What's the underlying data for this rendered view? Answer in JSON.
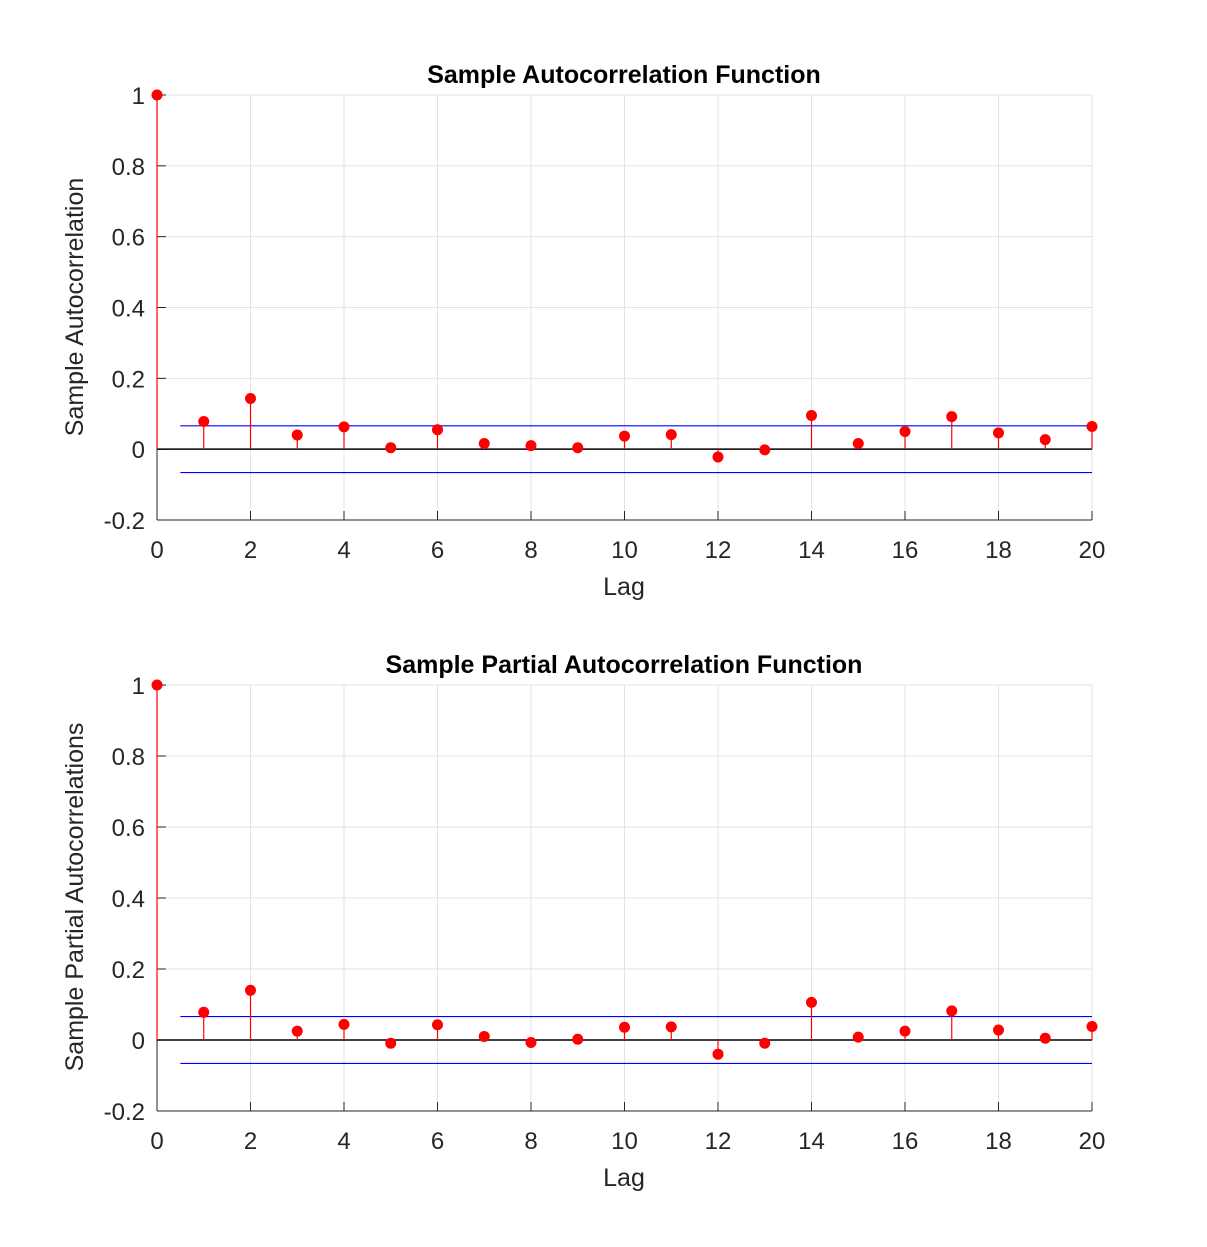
{
  "colors": {
    "stem": "#ff0000",
    "marker": "#ff0000",
    "bound": "#0000ff",
    "zero_line": "#000000",
    "grid": "#e3e3e3",
    "axis": "#262626"
  },
  "chart_data": [
    {
      "type": "stem",
      "title": "Sample Autocorrelation Function",
      "xlabel": "Lag",
      "ylabel": "Sample Autocorrelation",
      "xlim": [
        0,
        20
      ],
      "ylim": [
        -0.2,
        1
      ],
      "xticks": [
        "0",
        "2",
        "4",
        "6",
        "8",
        "10",
        "12",
        "14",
        "16",
        "18",
        "20"
      ],
      "yticks": [
        "-0.2",
        "0",
        "0.2",
        "0.4",
        "0.6",
        "0.8",
        "1"
      ],
      "grid": true,
      "confidence_bounds": [
        0.066,
        -0.066
      ],
      "x": [
        0,
        1,
        2,
        3,
        4,
        5,
        6,
        7,
        8,
        9,
        10,
        11,
        12,
        13,
        14,
        15,
        16,
        17,
        18,
        19,
        20
      ],
      "values": [
        1,
        0.078,
        0.143,
        0.04,
        0.063,
        0.004,
        0.055,
        0.016,
        0.01,
        0.004,
        0.037,
        0.041,
        -0.022,
        -0.002,
        0.095,
        0.016,
        0.05,
        0.092,
        0.046,
        0.027,
        0.064
      ]
    },
    {
      "type": "stem",
      "title": "Sample Partial Autocorrelation Function",
      "xlabel": "Lag",
      "ylabel": "Sample Partial Autocorrelations",
      "xlim": [
        0,
        20
      ],
      "ylim": [
        -0.2,
        1
      ],
      "xticks": [
        "0",
        "2",
        "4",
        "6",
        "8",
        "10",
        "12",
        "14",
        "16",
        "18",
        "20"
      ],
      "yticks": [
        "-0.2",
        "0",
        "0.2",
        "0.4",
        "0.6",
        "0.8",
        "1"
      ],
      "grid": true,
      "confidence_bounds": [
        0.066,
        -0.066
      ],
      "x": [
        0,
        1,
        2,
        3,
        4,
        5,
        6,
        7,
        8,
        9,
        10,
        11,
        12,
        13,
        14,
        15,
        16,
        17,
        18,
        19,
        20
      ],
      "values": [
        1,
        0.078,
        0.14,
        0.025,
        0.044,
        -0.009,
        0.043,
        0.01,
        -0.007,
        0.002,
        0.036,
        0.037,
        -0.04,
        -0.009,
        0.106,
        0.008,
        0.025,
        0.082,
        0.028,
        0.005,
        0.038
      ]
    }
  ]
}
